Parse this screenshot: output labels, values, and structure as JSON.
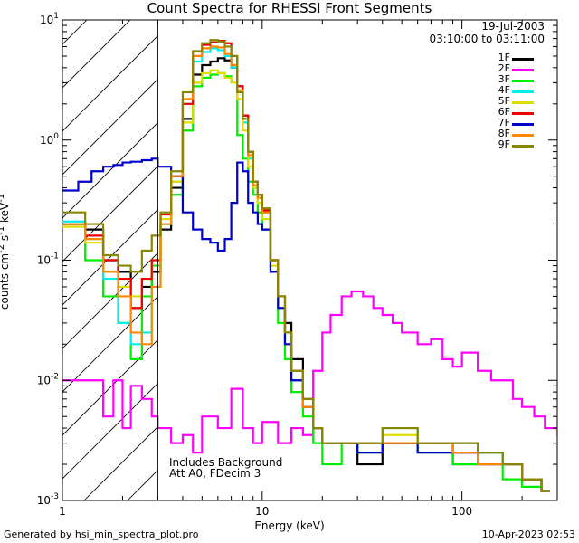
{
  "title": "Count Spectra for RHESSI Front Segments",
  "date": "19-Jul-2003",
  "time_range": "03:10:00 to 03:11:00",
  "footer_left": "Generated by hsi_min_spectra_plot.pro",
  "footer_right": "10-Apr-2023 02:53",
  "note_line1": "Includes Background",
  "note_line2": "Att A0, FDecim 3",
  "chart_data": {
    "type": "line",
    "title": "Count Spectra for RHESSI Front Segments",
    "xlabel": "Energy (keV)",
    "ylabel": "counts cm^-2 s^-1 keV^-1",
    "xscale": "log",
    "yscale": "log",
    "xlim": [
      1,
      300
    ],
    "ylim": [
      0.001,
      10
    ],
    "xticks": [
      {
        "value": 1,
        "label": "1"
      },
      {
        "value": 10,
        "label": "10"
      },
      {
        "value": 100,
        "label": "100"
      }
    ],
    "yticks": [
      {
        "value": 0.001,
        "label": "10^-3",
        "base": "10",
        "exp": "-3"
      },
      {
        "value": 0.01,
        "label": "10^-2",
        "base": "10",
        "exp": "-2"
      },
      {
        "value": 0.1,
        "label": "10^-1",
        "base": "10",
        "exp": "-1"
      },
      {
        "value": 1,
        "label": "10^0",
        "base": "10",
        "exp": "0"
      },
      {
        "value": 10,
        "label": "10^1",
        "base": "10",
        "exp": "1"
      }
    ],
    "hatched_region": [
      1,
      3
    ],
    "series": [
      {
        "name": "1F",
        "color": "#000000",
        "x": [
          1,
          1.3,
          1.6,
          1.9,
          2.2,
          2.5,
          2.8,
          3.1,
          3.5,
          4,
          4.5,
          5,
          5.5,
          6,
          6.5,
          7,
          7.5,
          8,
          8.5,
          9,
          9.5,
          10,
          11,
          12,
          13,
          14,
          16,
          18,
          20,
          25,
          30,
          40,
          60,
          90,
          120,
          160,
          200,
          250
        ],
        "y": [
          0.2,
          0.18,
          0.1,
          0.08,
          0.04,
          0.06,
          0.08,
          0.18,
          0.4,
          1.5,
          3.5,
          4.2,
          4.5,
          4.8,
          4.6,
          4.0,
          2.8,
          1.6,
          0.8,
          0.45,
          0.35,
          0.25,
          0.1,
          0.04,
          0.03,
          0.015,
          0.006,
          0.004,
          0.003,
          0.003,
          0.002,
          0.003,
          0.003,
          0.002,
          0.0025,
          0.002,
          0.0015,
          0.0012
        ]
      },
      {
        "name": "2F",
        "color": "#ff00ff",
        "x": [
          1,
          1.2,
          1.4,
          1.6,
          1.8,
          2,
          2.2,
          2.5,
          2.8,
          3,
          3.5,
          4,
          4.5,
          5,
          6,
          7,
          8,
          9,
          10,
          12,
          14,
          16,
          18,
          20,
          22,
          25,
          28,
          32,
          36,
          40,
          45,
          50,
          60,
          70,
          80,
          90,
          100,
          120,
          140,
          160,
          180,
          200,
          230,
          260,
          300
        ],
        "y": [
          0.01,
          0.01,
          0.01,
          0.005,
          0.01,
          0.004,
          0.009,
          0.007,
          0.005,
          0.004,
          0.003,
          0.0035,
          0.0025,
          0.005,
          0.004,
          0.0085,
          0.004,
          0.003,
          0.0045,
          0.003,
          0.004,
          0.0035,
          0.012,
          0.025,
          0.035,
          0.05,
          0.055,
          0.05,
          0.04,
          0.035,
          0.03,
          0.025,
          0.02,
          0.022,
          0.015,
          0.013,
          0.017,
          0.012,
          0.01,
          0.01,
          0.007,
          0.006,
          0.005,
          0.004,
          0.0035
        ]
      },
      {
        "name": "3F",
        "color": "#00ee00",
        "x": [
          1,
          1.3,
          1.6,
          1.9,
          2.2,
          2.5,
          2.8,
          3.1,
          3.5,
          4,
          4.5,
          5,
          5.5,
          6,
          6.5,
          7,
          7.5,
          8,
          8.5,
          9,
          9.5,
          10,
          11,
          12,
          13,
          14,
          16,
          18,
          20,
          25,
          30,
          40,
          60,
          90,
          120,
          160,
          200,
          250
        ],
        "y": [
          0.2,
          0.1,
          0.05,
          0.03,
          0.015,
          0.05,
          0.09,
          0.2,
          0.35,
          1.2,
          2.8,
          3.3,
          3.5,
          3.6,
          3.4,
          3.0,
          1.1,
          0.7,
          0.45,
          0.35,
          0.25,
          0.18,
          0.08,
          0.03,
          0.015,
          0.008,
          0.005,
          0.003,
          0.002,
          0.003,
          0.0025,
          0.003,
          0.0025,
          0.002,
          0.002,
          0.0015,
          0.0013,
          0.0012
        ]
      },
      {
        "name": "4F",
        "color": "#00eeee",
        "x": [
          1,
          1.3,
          1.6,
          1.9,
          2.2,
          2.5,
          2.8,
          3.1,
          3.5,
          4,
          4.5,
          5,
          5.5,
          6,
          6.5,
          7,
          7.5,
          8,
          8.5,
          9,
          9.5,
          10,
          11,
          12,
          13,
          14,
          16,
          18,
          20,
          25,
          30,
          40,
          60,
          90,
          120,
          160,
          200,
          250
        ],
        "y": [
          0.21,
          0.15,
          0.07,
          0.03,
          0.02,
          0.025,
          0.06,
          0.2,
          0.45,
          2.0,
          4.5,
          5.4,
          5.8,
          5.6,
          5.0,
          4.0,
          2.5,
          1.4,
          0.7,
          0.4,
          0.3,
          0.22,
          0.09,
          0.04,
          0.02,
          0.01,
          0.006,
          0.004,
          0.003,
          0.003,
          0.003,
          0.004,
          0.003,
          0.003,
          0.0025,
          0.002,
          0.0015,
          0.0012
        ]
      },
      {
        "name": "5F",
        "color": "#dddd00",
        "x": [
          1,
          1.3,
          1.6,
          1.9,
          2.2,
          2.5,
          2.8,
          3.1,
          3.5,
          4,
          4.5,
          5,
          5.5,
          6,
          6.5,
          7,
          7.5,
          8,
          8.5,
          9,
          9.5,
          10,
          11,
          12,
          13,
          14,
          16,
          18,
          20,
          25,
          30,
          40,
          60,
          90,
          120,
          160,
          200,
          250
        ],
        "y": [
          0.19,
          0.14,
          0.08,
          0.06,
          0.05,
          0.07,
          0.1,
          0.22,
          0.45,
          1.4,
          3.0,
          3.6,
          3.8,
          3.6,
          3.3,
          3.0,
          2.2,
          1.2,
          0.6,
          0.4,
          0.3,
          0.22,
          0.09,
          0.04,
          0.02,
          0.012,
          0.006,
          0.004,
          0.003,
          0.003,
          0.003,
          0.0035,
          0.003,
          0.0025,
          0.002,
          0.002,
          0.0015,
          0.0012
        ]
      },
      {
        "name": "6F",
        "color": "#ee0000",
        "x": [
          1,
          1.3,
          1.6,
          1.9,
          2.2,
          2.5,
          2.8,
          3.1,
          3.5,
          4,
          4.5,
          5,
          5.5,
          6,
          6.5,
          7,
          7.5,
          8,
          8.5,
          9,
          9.5,
          10,
          11,
          12,
          13,
          14,
          16,
          18,
          20,
          25,
          30,
          40,
          60,
          90,
          120,
          160,
          200,
          250
        ],
        "y": [
          0.2,
          0.16,
          0.1,
          0.07,
          0.04,
          0.07,
          0.1,
          0.24,
          0.5,
          2.0,
          5.0,
          6.2,
          6.5,
          6.7,
          6.4,
          5.0,
          2.8,
          1.6,
          0.8,
          0.45,
          0.35,
          0.26,
          0.1,
          0.05,
          0.025,
          0.012,
          0.007,
          0.004,
          0.003,
          0.003,
          0.003,
          0.003,
          0.003,
          0.0025,
          0.002,
          0.002,
          0.0015,
          0.0012
        ]
      },
      {
        "name": "7F",
        "color": "#0000cc",
        "x": [
          1,
          1.2,
          1.4,
          1.6,
          1.8,
          2,
          2.2,
          2.5,
          2.8,
          3,
          3.5,
          4,
          4.5,
          5,
          5.5,
          6,
          6.5,
          7,
          7.5,
          8,
          8.5,
          9,
          9.5,
          10,
          11,
          12,
          13,
          14,
          16,
          18,
          20,
          25,
          30,
          40,
          60,
          90,
          120,
          160,
          200,
          250
        ],
        "y": [
          0.38,
          0.45,
          0.55,
          0.6,
          0.62,
          0.65,
          0.66,
          0.68,
          0.7,
          0.6,
          0.5,
          0.25,
          0.18,
          0.15,
          0.14,
          0.12,
          0.15,
          0.3,
          0.65,
          0.55,
          0.3,
          0.25,
          0.2,
          0.18,
          0.08,
          0.04,
          0.02,
          0.01,
          0.006,
          0.004,
          0.003,
          0.003,
          0.0025,
          0.003,
          0.0025,
          0.0025,
          0.002,
          0.002,
          0.0015,
          0.0012
        ]
      },
      {
        "name": "8F",
        "color": "#ff8800",
        "x": [
          1,
          1.3,
          1.6,
          1.9,
          2.2,
          2.5,
          2.8,
          3.1,
          3.5,
          4,
          4.5,
          5,
          5.5,
          6,
          6.5,
          7,
          7.5,
          8,
          8.5,
          9,
          9.5,
          10,
          11,
          12,
          13,
          14,
          16,
          18,
          20,
          25,
          30,
          40,
          60,
          90,
          120,
          160,
          200,
          250
        ],
        "y": [
          0.2,
          0.15,
          0.08,
          0.05,
          0.025,
          0.02,
          0.06,
          0.2,
          0.5,
          2.2,
          5.0,
          5.8,
          6.0,
          5.9,
          5.2,
          4.2,
          2.6,
          1.5,
          0.75,
          0.42,
          0.33,
          0.25,
          0.1,
          0.05,
          0.025,
          0.012,
          0.006,
          0.004,
          0.003,
          0.003,
          0.003,
          0.003,
          0.003,
          0.0025,
          0.002,
          0.002,
          0.0015,
          0.0012
        ]
      },
      {
        "name": "9F",
        "color": "#888800",
        "x": [
          1,
          1.3,
          1.6,
          1.9,
          2.2,
          2.5,
          2.8,
          3.1,
          3.5,
          4,
          4.5,
          5,
          5.5,
          6,
          6.5,
          7,
          7.5,
          8,
          8.5,
          9,
          9.5,
          10,
          11,
          12,
          13,
          14,
          16,
          18,
          20,
          25,
          30,
          40,
          60,
          90,
          120,
          160,
          200,
          250
        ],
        "y": [
          0.25,
          0.2,
          0.11,
          0.09,
          0.08,
          0.12,
          0.16,
          0.25,
          0.55,
          2.5,
          5.5,
          6.4,
          6.8,
          6.6,
          6.0,
          5.0,
          2.5,
          1.5,
          0.8,
          0.45,
          0.35,
          0.27,
          0.1,
          0.05,
          0.025,
          0.012,
          0.007,
          0.004,
          0.003,
          0.003,
          0.003,
          0.004,
          0.003,
          0.003,
          0.0025,
          0.002,
          0.0015,
          0.0012
        ]
      }
    ]
  }
}
